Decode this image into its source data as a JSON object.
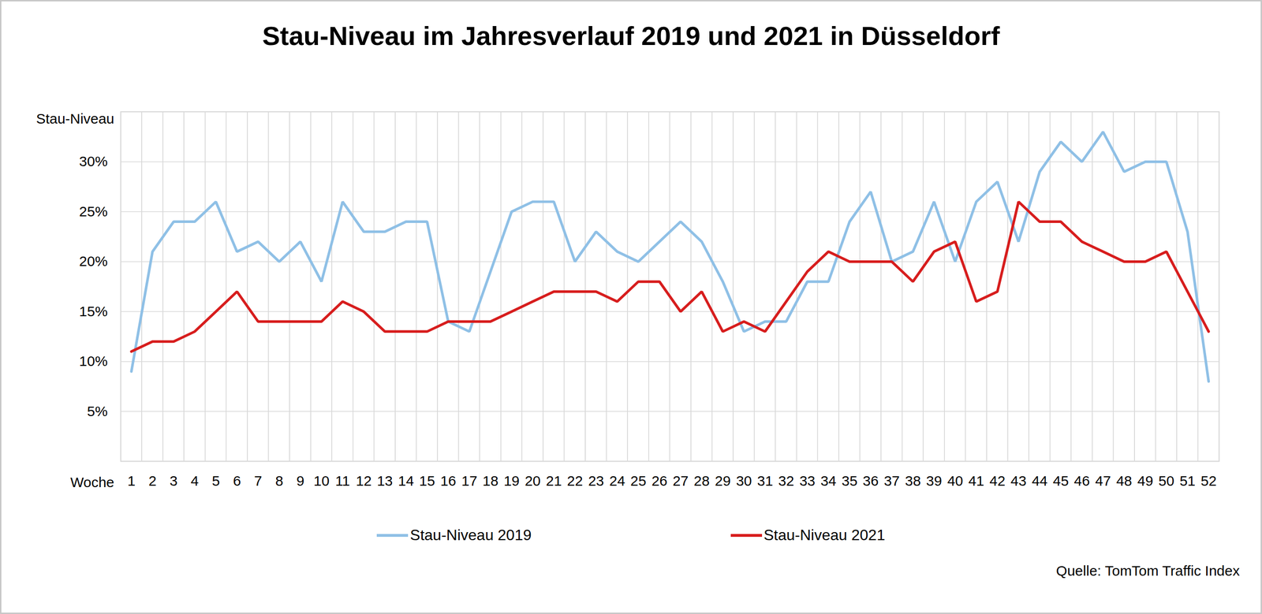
{
  "chart_data": {
    "type": "line",
    "title": "Stau-Niveau im Jahresverlauf 2019 und 2021 in Düsseldorf",
    "x_label": "Woche",
    "y_label": "Stau-Niveau",
    "caption": "Quelle: TomTom Traffic Index",
    "categories": [
      "1",
      "2",
      "3",
      "4",
      "5",
      "6",
      "7",
      "8",
      "9",
      "10",
      "11",
      "12",
      "13",
      "14",
      "15",
      "16",
      "17",
      "18",
      "19",
      "20",
      "21",
      "22",
      "23",
      "24",
      "25",
      "26",
      "27",
      "28",
      "29",
      "30",
      "31",
      "32",
      "33",
      "34",
      "35",
      "36",
      "37",
      "38",
      "39",
      "40",
      "41",
      "42",
      "43",
      "44",
      "45",
      "46",
      "47",
      "48",
      "49",
      "50",
      "51",
      "52"
    ],
    "series": [
      {
        "name": "Stau-Niveau 2019",
        "color": "#8fc0e6",
        "values": [
          9,
          21,
          24,
          24,
          26,
          21,
          22,
          20,
          22,
          18,
          26,
          23,
          23,
          24,
          24,
          14,
          13,
          19,
          25,
          26,
          26,
          20,
          23,
          21,
          20,
          22,
          24,
          22,
          18,
          13,
          14,
          14,
          18,
          18,
          24,
          27,
          20,
          21,
          26,
          20,
          26,
          28,
          22,
          29,
          32,
          30,
          33,
          29,
          30,
          30,
          23,
          8
        ]
      },
      {
        "name": "Stau-Niveau 2021",
        "color": "#d71d1d",
        "values": [
          11,
          12,
          12,
          13,
          15,
          17,
          14,
          14,
          14,
          14,
          16,
          15,
          13,
          13,
          13,
          14,
          14,
          14,
          15,
          16,
          17,
          17,
          17,
          16,
          18,
          18,
          15,
          17,
          13,
          14,
          13,
          16,
          19,
          21,
          20,
          20,
          20,
          18,
          21,
          22,
          16,
          17,
          26,
          24,
          24,
          22,
          21,
          20,
          20,
          21,
          17,
          13
        ]
      }
    ],
    "ylim": [
      0,
      35
    ],
    "yticks": [
      {
        "value": 5,
        "label": "5%"
      },
      {
        "value": 10,
        "label": "10%"
      },
      {
        "value": 15,
        "label": "15%"
      },
      {
        "value": 20,
        "label": "20%"
      },
      {
        "value": 25,
        "label": "25%"
      },
      {
        "value": 30,
        "label": "30%"
      }
    ],
    "grid": true,
    "legend": "bottom"
  }
}
